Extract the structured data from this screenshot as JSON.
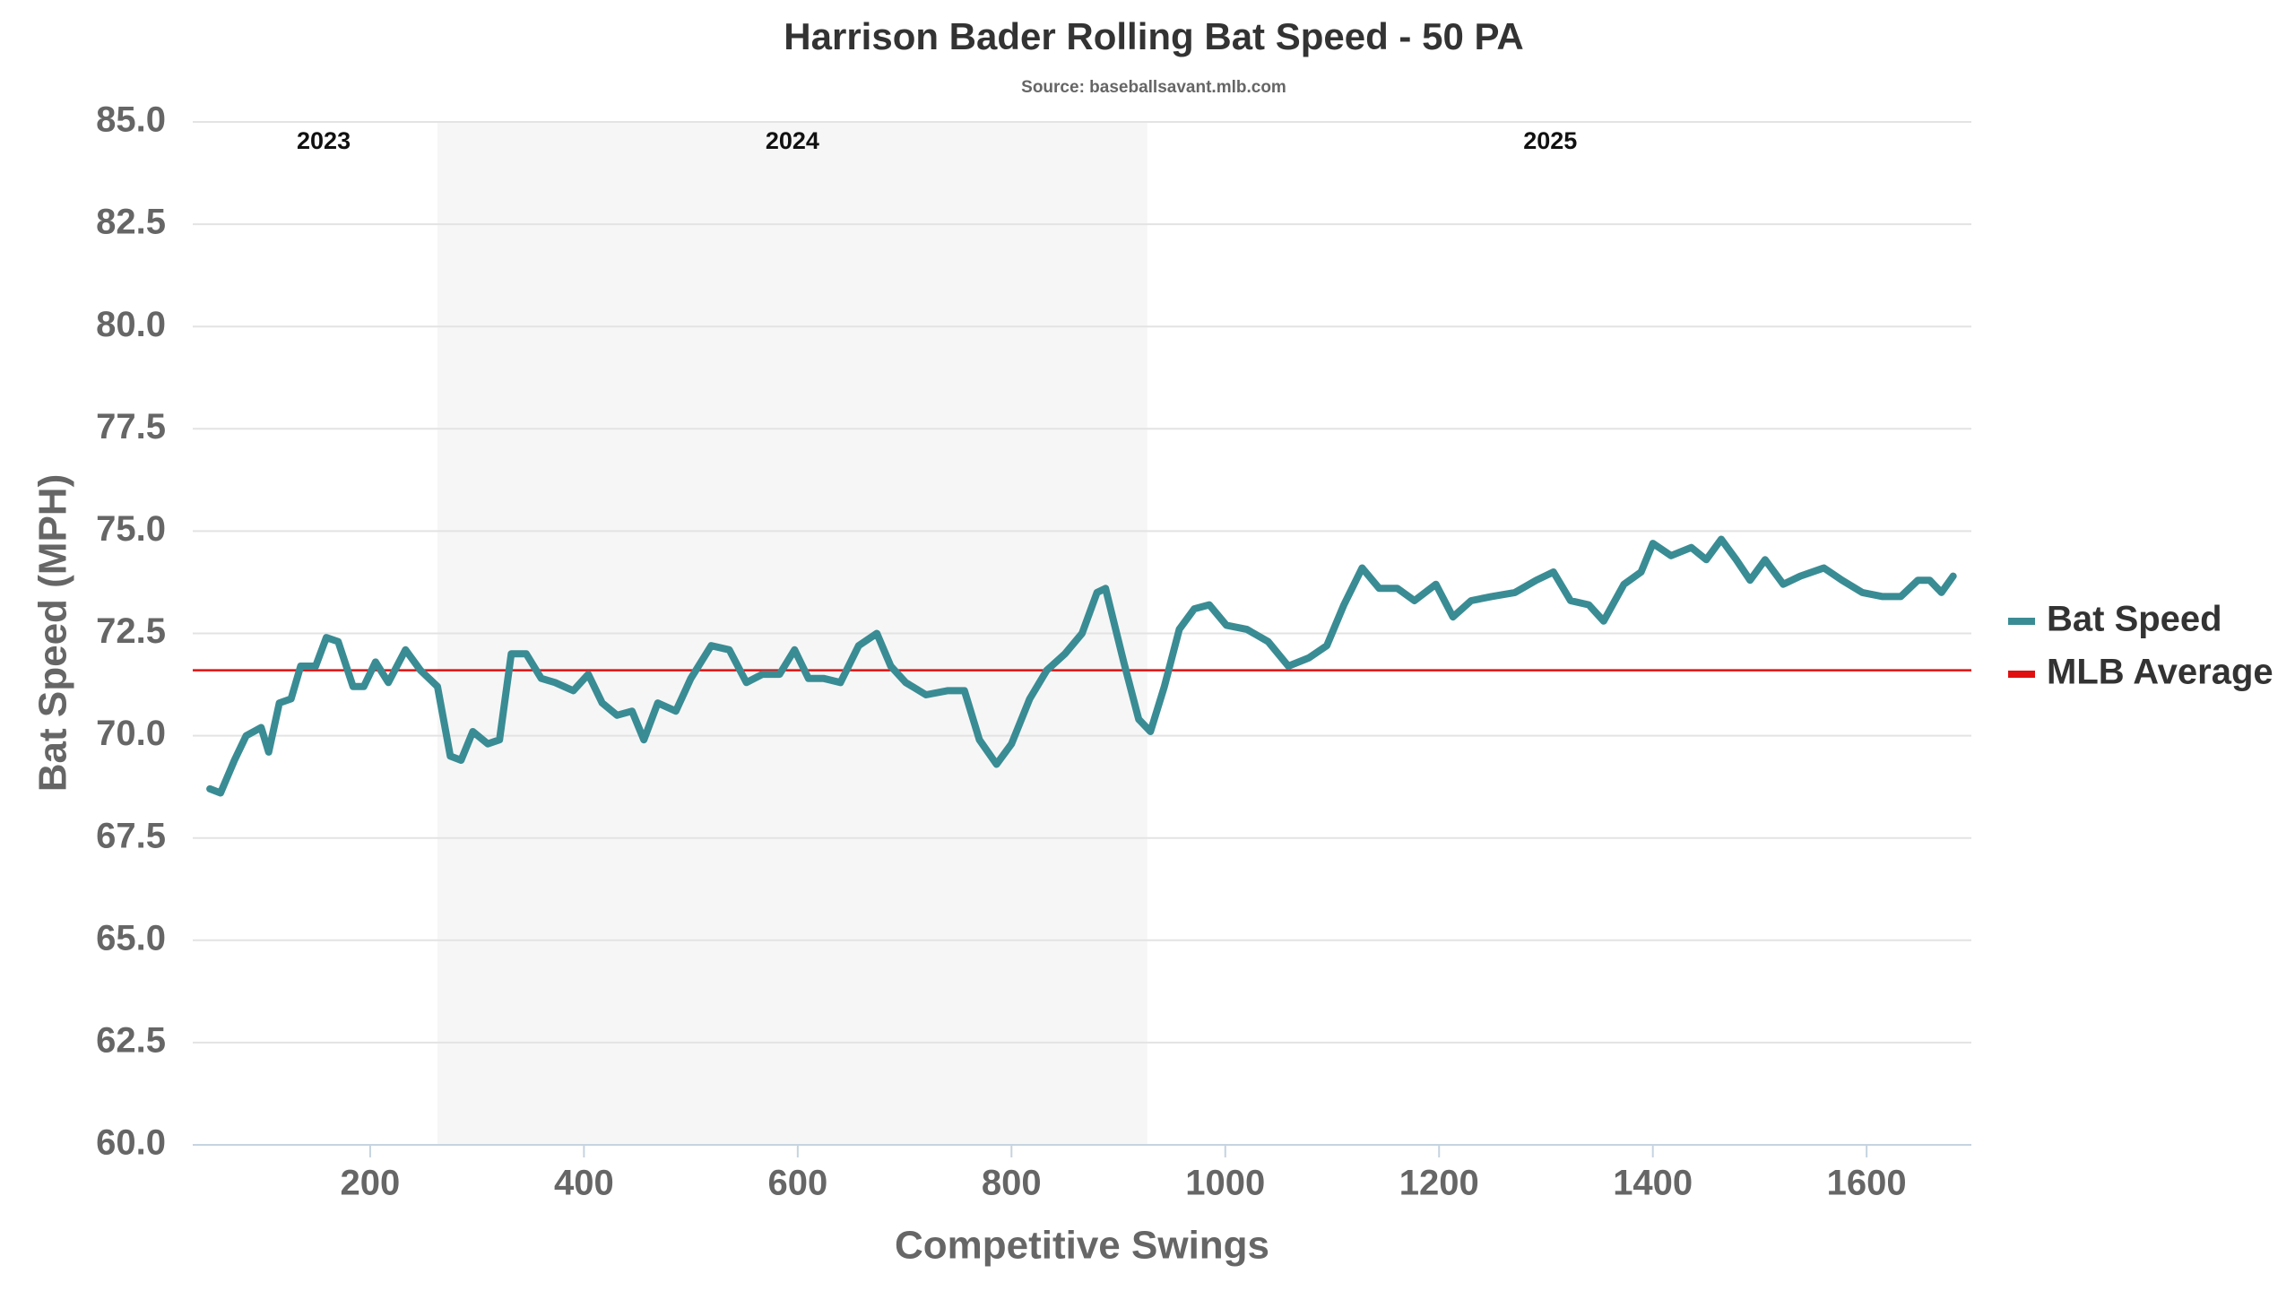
{
  "chart_data": {
    "type": "line",
    "title": "Harrison Bader Rolling Bat Speed - 50 PA",
    "subtitle": "Source: baseballsavant.mlb.com",
    "xlabel": "Competitive Swings",
    "ylabel": "Bat Speed (MPH)",
    "xlim": [
      34,
      1698
    ],
    "ylim": [
      60,
      85
    ],
    "xticks": [
      200,
      400,
      600,
      800,
      1000,
      1200,
      1400,
      1600
    ],
    "yticks": [
      {
        "value": 60,
        "label": "60.0"
      },
      62.5,
      {
        "value": 65,
        "label": "65.0"
      },
      67.5,
      {
        "value": 70,
        "label": "70.0"
      },
      72.5,
      {
        "value": 75,
        "label": "75.0"
      },
      77.5,
      {
        "value": 80,
        "label": "80.0"
      },
      82.5,
      {
        "value": 85,
        "label": "85.0"
      }
    ],
    "grid": true,
    "seasons": [
      {
        "label": "2023",
        "start": 50,
        "end": 263,
        "shaded": false
      },
      {
        "label": "2024",
        "start": 263,
        "end": 927,
        "shaded": true
      },
      {
        "label": "2025",
        "start": 927,
        "end": 1681,
        "shaded": false
      }
    ],
    "reference": {
      "name": "MLB Average",
      "value": 71.6,
      "color": "#e01010"
    },
    "x": [
      50,
      60,
      73,
      84,
      98,
      105,
      115,
      126,
      135,
      149,
      159,
      170,
      184,
      194,
      205,
      217,
      233,
      247,
      263,
      275,
      285,
      296,
      310,
      321,
      332,
      346,
      360,
      373,
      390,
      404,
      417,
      431,
      445,
      456,
      469,
      486,
      500,
      519,
      536,
      552,
      567,
      583,
      597,
      610,
      624,
      640,
      657,
      674,
      687,
      701,
      720,
      740,
      756,
      770,
      786,
      800,
      817,
      833,
      850,
      866,
      880,
      888,
      905,
      919,
      930,
      943,
      957,
      971,
      985,
      1001,
      1020,
      1040,
      1059,
      1078,
      1095,
      1111,
      1128,
      1144,
      1161,
      1177,
      1197,
      1213,
      1230,
      1249,
      1271,
      1291,
      1307,
      1323,
      1340,
      1354,
      1373,
      1389,
      1400,
      1417,
      1436,
      1450,
      1464,
      1478,
      1491,
      1505,
      1522,
      1538,
      1560,
      1577,
      1596,
      1615,
      1632,
      1648,
      1659,
      1670,
      1681
    ],
    "series": [
      {
        "name": "Bat Speed",
        "color": "#3a8c94",
        "values": [
          68.7,
          68.6,
          69.4,
          70.0,
          70.2,
          69.6,
          70.8,
          70.9,
          71.7,
          71.7,
          72.4,
          72.3,
          71.2,
          71.2,
          71.8,
          71.3,
          72.1,
          71.6,
          71.2,
          69.5,
          69.4,
          70.1,
          69.8,
          69.9,
          72.0,
          72.0,
          71.4,
          71.3,
          71.1,
          71.5,
          70.8,
          70.5,
          70.6,
          69.9,
          70.8,
          70.6,
          71.4,
          72.2,
          72.1,
          71.3,
          71.5,
          71.5,
          72.1,
          71.4,
          71.4,
          71.3,
          72.2,
          72.5,
          71.7,
          71.3,
          71.0,
          71.1,
          71.1,
          69.9,
          69.3,
          69.8,
          70.9,
          71.6,
          72.0,
          72.5,
          73.5,
          73.6,
          71.8,
          70.4,
          70.1,
          71.2,
          72.6,
          73.1,
          73.2,
          72.7,
          72.6,
          72.3,
          71.7,
          71.9,
          72.2,
          73.2,
          74.1,
          73.6,
          73.6,
          73.3,
          73.7,
          72.9,
          73.3,
          73.4,
          73.5,
          73.8,
          74.0,
          73.3,
          73.2,
          72.8,
          73.7,
          74.0,
          74.7,
          74.4,
          74.6,
          74.3,
          74.8,
          74.3,
          73.8,
          74.3,
          73.7,
          73.9,
          74.1,
          73.8,
          73.5,
          73.4,
          73.4,
          73.8,
          73.8,
          73.5,
          73.9
        ]
      }
    ]
  }
}
